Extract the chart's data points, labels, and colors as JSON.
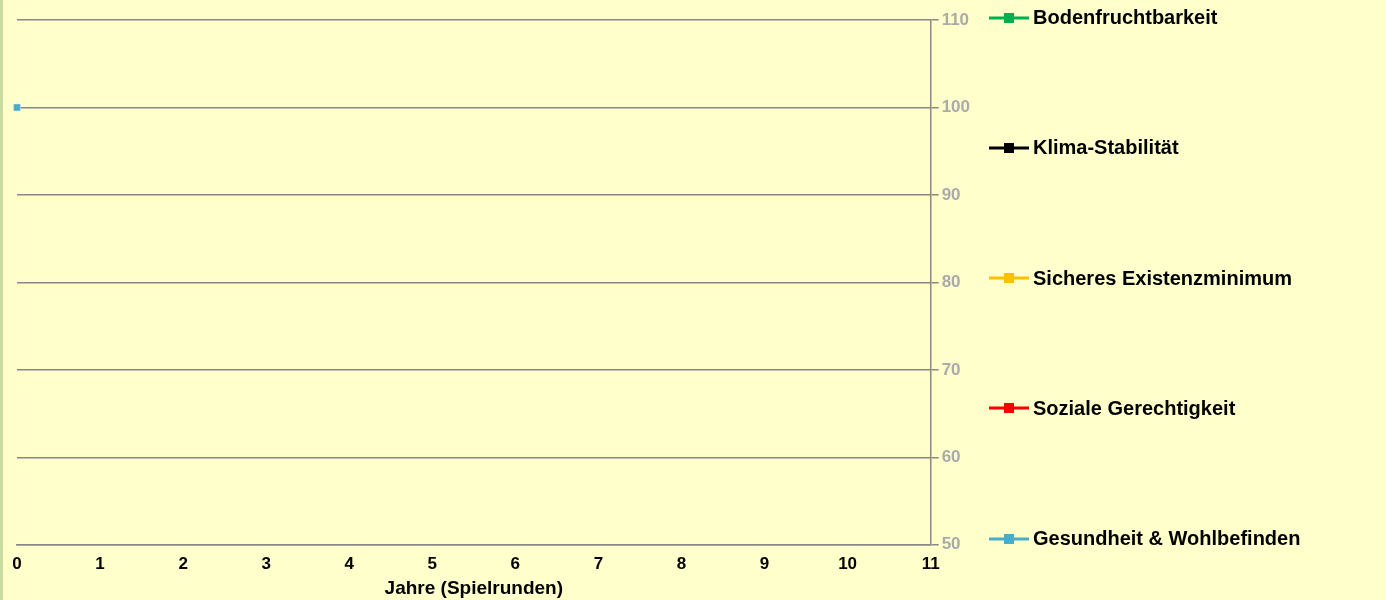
{
  "chart_data": {
    "type": "line",
    "xlabel": "Jahre (Spielrunden)",
    "x": [
      0
    ],
    "xlim": [
      0,
      11
    ],
    "xticks": [
      0,
      1,
      2,
      3,
      4,
      5,
      6,
      7,
      8,
      9,
      10,
      11
    ],
    "ylim": [
      50,
      110
    ],
    "yticks": [
      50,
      60,
      70,
      80,
      90,
      100,
      110
    ],
    "grid": "y",
    "legend": "right",
    "marker": "square",
    "line_style": "solid",
    "series": [
      {
        "name": "Bodenfruchtbarkeit",
        "color": "#00b050",
        "values": [
          null
        ]
      },
      {
        "name": "Klima-Stabilität",
        "color": "#000000",
        "values": [
          null
        ]
      },
      {
        "name": "Sicheres Existenzminimum",
        "color": "#ffc000",
        "values": [
          null
        ]
      },
      {
        "name": "Soziale Gerechtigkeit",
        "color": "#ff0000",
        "values": [
          null
        ]
      },
      {
        "name": "Gesundheit & Wohlbefinden",
        "color": "#4bacc6",
        "values": [
          100
        ]
      }
    ]
  }
}
